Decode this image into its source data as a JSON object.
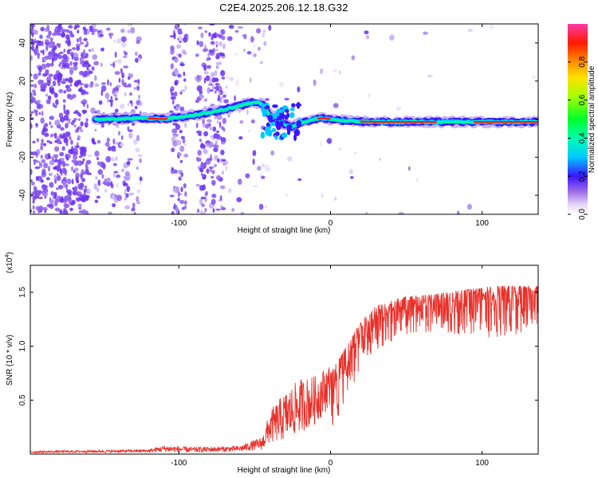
{
  "title": "C2E4.2025.206.12.18.G32",
  "chart_data": [
    {
      "type": "heatmap",
      "xlabel": "Height of straight line (km)",
      "ylabel": "Frequency (Hz)",
      "xlim": [
        -198,
        137
      ],
      "ylim": [
        -50,
        50
      ],
      "x_ticks": [
        -100,
        0,
        100
      ],
      "x_tick_labels": [
        "-100",
        "0",
        "100"
      ],
      "y_ticks": [
        -40,
        -20,
        0,
        20,
        40
      ],
      "y_tick_labels": [
        "-40",
        "-20",
        "0",
        "20",
        "40"
      ],
      "colorbar": {
        "label": "Normalized spectral amplitude",
        "range": [
          0,
          1
        ],
        "ticks": [
          0.0,
          0.2,
          0.4,
          0.6,
          0.8
        ],
        "tick_labels": [
          "0.0",
          "0.2",
          "0.4",
          "0.6",
          "0.8"
        ]
      },
      "ridge_frequency": {
        "x": [
          -155,
          -140,
          -125,
          -110,
          -100,
          -90,
          -80,
          -70,
          -60,
          -50,
          -45,
          -40,
          -35,
          -30,
          -25,
          -20,
          -15,
          -10,
          -5,
          0,
          10,
          30,
          60,
          90,
          120,
          137
        ],
        "y": [
          0,
          0,
          0.5,
          0,
          1,
          2,
          3.5,
          5,
          7,
          9,
          8,
          2,
          1,
          -3,
          -4,
          -2,
          -1,
          0,
          0.5,
          0,
          -1,
          -1.5,
          -1.5,
          -1.5,
          -1.5,
          -1.5
        ]
      }
    },
    {
      "type": "line",
      "xlabel": "Height of straight line (km)",
      "ylabel": "SNR (10 * v/v)",
      "y_multiplier_label": "(x10",
      "y_multiplier_exp": "4",
      "xlim": [
        -198,
        137
      ],
      "ylim": [
        0,
        1.75
      ],
      "x_ticks": [
        -100,
        0,
        100
      ],
      "x_tick_labels": [
        "-100",
        "0",
        "100"
      ],
      "y_ticks": [
        0.5,
        1.0,
        1.5
      ],
      "y_tick_labels": [
        "0.5",
        "1.0",
        "1.5"
      ],
      "series": [
        {
          "color": "#e8302a",
          "envelope": {
            "x": [
              -198,
              -120,
              -110,
              -90,
              -60,
              -45,
              -40,
              -30,
              -20,
              -10,
              0,
              10,
              20,
              30,
              50,
              70,
              90,
              110,
              137
            ],
            "base": [
              0.02,
              0.03,
              0.05,
              0.04,
              0.05,
              0.1,
              0.25,
              0.35,
              0.45,
              0.5,
              0.65,
              0.9,
              1.15,
              1.3,
              1.4,
              1.42,
              1.45,
              1.47,
              1.48
            ],
            "spread": [
              0.02,
              0.03,
              0.06,
              0.05,
              0.05,
              0.12,
              0.3,
              0.45,
              0.5,
              0.45,
              0.4,
              0.35,
              0.3,
              0.3,
              0.25,
              0.25,
              0.3,
              0.35,
              0.3
            ]
          }
        }
      ]
    }
  ]
}
